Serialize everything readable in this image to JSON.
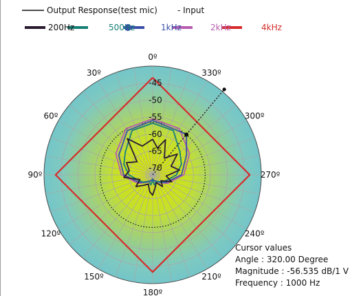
{
  "legend": {
    "main_label": "Output Response(test mic)",
    "input_label": "- Input",
    "entries": [
      {
        "name": "200Hz",
        "color": "#2a1a2f"
      },
      {
        "name": "500Hz",
        "color": "#157f76"
      },
      {
        "name": "1kHz",
        "color": "#3a4fa8"
      },
      {
        "name": "2kHz",
        "color": "#b65db0"
      },
      {
        "name": "4kHz",
        "color": "#d62a2a"
      }
    ]
  },
  "cursor": {
    "title": "Cursor values",
    "angle": "Angle :  320.00 Degree",
    "magnitude": "Magnitude : -56.535 dB/1 V",
    "frequency": "Frequency : 1000 Hz",
    "angle_deg": 320,
    "magnitude_db": -56.535
  },
  "chart_data": {
    "type": "polar",
    "angle_labels": [
      {
        "deg": 0,
        "label": "0º"
      },
      {
        "deg": 30,
        "label": "330º"
      },
      {
        "deg": 60,
        "label": "300º"
      },
      {
        "deg": 90,
        "label": "270º"
      },
      {
        "deg": 120,
        "label": "240º"
      },
      {
        "deg": 150,
        "label": "210º"
      },
      {
        "deg": 180,
        "label": "180º"
      },
      {
        "deg": 210,
        "label": "150º"
      },
      {
        "deg": 240,
        "label": "120º"
      },
      {
        "deg": 270,
        "label": "90º"
      },
      {
        "deg": 300,
        "label": "60º"
      },
      {
        "deg": 330,
        "label": "30º"
      }
    ],
    "radial_ticks": [
      -45,
      -50,
      -55,
      -60,
      -65,
      -70
    ],
    "rlim": [
      -72,
      -40
    ],
    "series": [
      {
        "name": "4kHz",
        "color": "#d62a2a",
        "angles": [
          0,
          90,
          180,
          270,
          360
        ],
        "values": [
          -43.4,
          -43.4,
          -43.4,
          -43.4,
          -43.4
        ]
      },
      {
        "name": "2kHz",
        "color": "#b65db0",
        "angles": [
          0,
          30,
          60,
          90,
          120,
          150,
          170,
          180,
          190,
          210,
          240,
          270,
          300,
          330,
          360
        ],
        "values": [
          -55.5,
          -56.3,
          -59.5,
          -62.8,
          -67,
          -69.5,
          -70.3,
          -70.7,
          -70.3,
          -69.5,
          -67,
          -62.8,
          -59.5,
          -56.3,
          -55.5
        ]
      },
      {
        "name": "1kHz",
        "color": "#3a4fa8",
        "angles": [
          0,
          30,
          60,
          90,
          120,
          150,
          170,
          180,
          190,
          210,
          240,
          270,
          300,
          320,
          330,
          360
        ],
        "values": [
          -56,
          -57,
          -60.5,
          -63.5,
          -67.5,
          -69.8,
          -70.4,
          -70.8,
          -70.4,
          -69.8,
          -67.5,
          -63.5,
          -60.5,
          -56.5,
          -57,
          -56
        ]
      },
      {
        "name": "500Hz",
        "color": "#157f76",
        "angles": [
          0,
          25,
          50,
          70,
          90,
          110,
          130,
          150,
          170,
          180,
          190,
          210,
          230,
          250,
          270,
          290,
          310,
          335,
          360
        ],
        "values": [
          -56.8,
          -57.6,
          -61.5,
          -63,
          -65,
          -67.5,
          -68.5,
          -69.8,
          -69,
          -70.5,
          -69,
          -69.8,
          -68.5,
          -67.5,
          -65,
          -63,
          -61.5,
          -57.6,
          -56.8
        ]
      },
      {
        "name": "200Hz",
        "color": "#2a1a2f",
        "angles": [
          0,
          20,
          35,
          50,
          65,
          80,
          95,
          110,
          125,
          140,
          155,
          170,
          180,
          190,
          205,
          220,
          235,
          250,
          265,
          280,
          295,
          310,
          325,
          340,
          350,
          360
        ],
        "values": [
          -61.5,
          -63,
          -59,
          -66,
          -63.5,
          -65,
          -63.5,
          -68,
          -66,
          -68,
          -69,
          -67,
          -66,
          -68,
          -69.5,
          -67.5,
          -69,
          -66,
          -68,
          -64,
          -66,
          -62.5,
          -66,
          -61,
          -64,
          -61.5
        ]
      }
    ],
    "cursor": {
      "angle": 320,
      "value": -56.535
    },
    "grid": true
  }
}
